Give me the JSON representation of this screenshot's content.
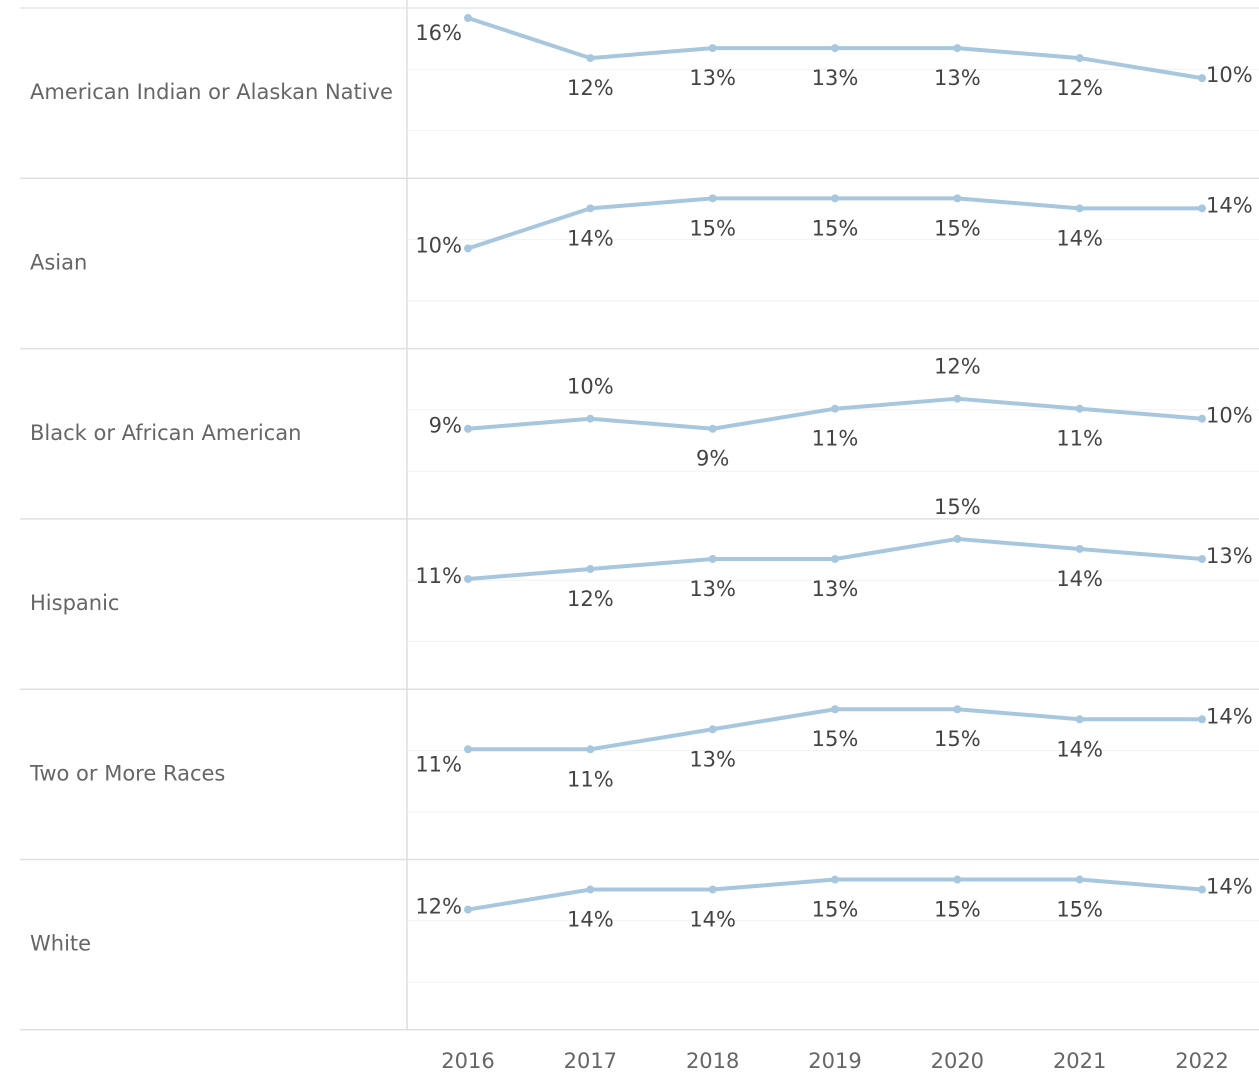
{
  "chart_data": {
    "type": "line",
    "categories": [
      "2016",
      "2017",
      "2018",
      "2019",
      "2020",
      "2021",
      "2022"
    ],
    "ylim": [
      0,
      17
    ],
    "series": [
      {
        "name": "American Indian or Alaskan Native",
        "color": "#a7c7df",
        "values": [
          16,
          12,
          13,
          13,
          13,
          12,
          10
        ],
        "value_labels": [
          "16%",
          "12%",
          "13%",
          "13%",
          "13%",
          "12%",
          "10%"
        ]
      },
      {
        "name": "Asian",
        "color": "#a7c7df",
        "values": [
          10,
          14,
          15,
          15,
          15,
          14,
          14
        ],
        "value_labels": [
          "10%",
          "14%",
          "15%",
          "15%",
          "15%",
          "14%",
          "14%"
        ]
      },
      {
        "name": "Black or African American",
        "color": "#a7c7df",
        "values": [
          9,
          10,
          9,
          11,
          12,
          11,
          10
        ],
        "value_labels": [
          "9%",
          "10%",
          "9%",
          "11%",
          "12%",
          "11%",
          "10%"
        ]
      },
      {
        "name": "Hispanic",
        "color": "#a7c7df",
        "values": [
          11,
          12,
          13,
          13,
          15,
          14,
          13
        ],
        "value_labels": [
          "11%",
          "12%",
          "13%",
          "13%",
          "15%",
          "14%",
          "13%"
        ]
      },
      {
        "name": "Two or More Races",
        "color": "#a7c7df",
        "values": [
          11,
          11,
          13,
          15,
          15,
          14,
          14
        ],
        "value_labels": [
          "11%",
          "11%",
          "13%",
          "15%",
          "15%",
          "14%",
          "14%"
        ]
      },
      {
        "name": "White",
        "color": "#a7c7df",
        "values": [
          12,
          14,
          14,
          15,
          15,
          15,
          14
        ],
        "value_labels": [
          "12%",
          "14%",
          "14%",
          "15%",
          "15%",
          "15%",
          "14%"
        ]
      }
    ]
  }
}
